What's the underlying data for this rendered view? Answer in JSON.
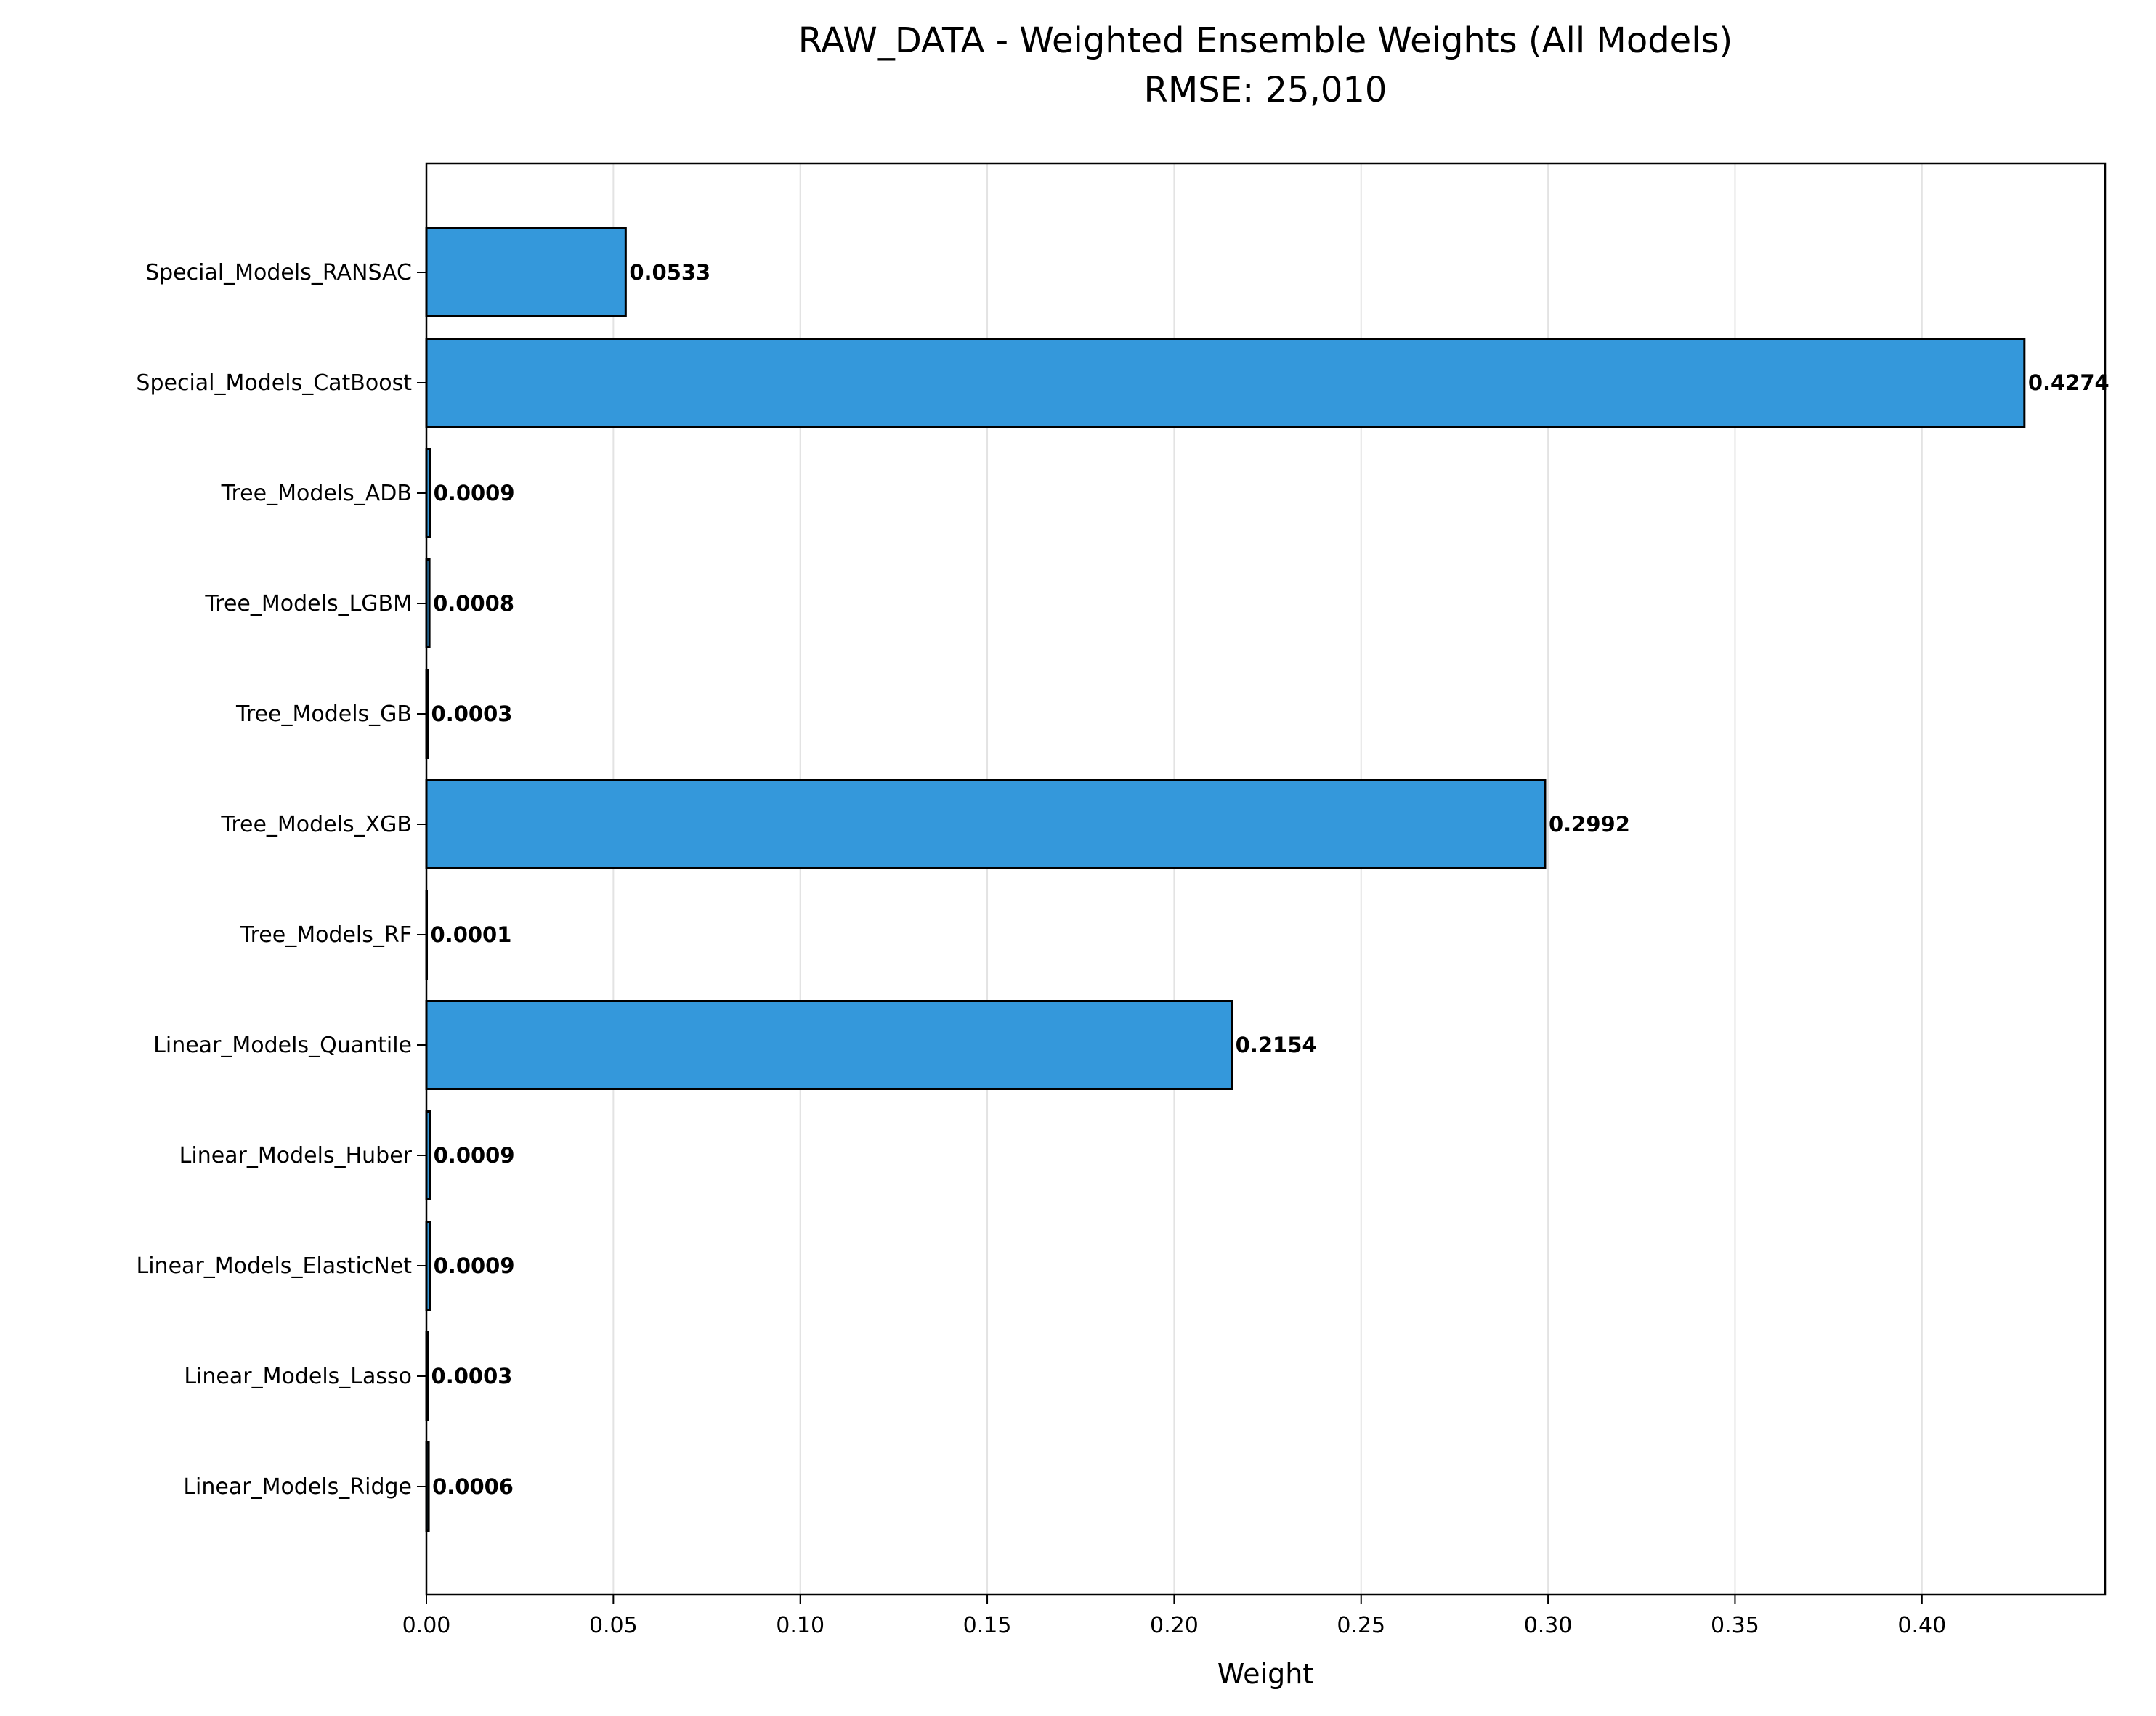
{
  "chart_data": {
    "type": "bar",
    "orientation": "horizontal",
    "title": "RAW_DATA - Weighted Ensemble Weights (All Models)",
    "subtitle": "RMSE: 25,010",
    "xlabel": "Weight",
    "ylabel": "",
    "xlim": [
      0,
      0.449
    ],
    "xticks": [
      "0.00",
      "0.05",
      "0.10",
      "0.15",
      "0.20",
      "0.25",
      "0.30",
      "0.35",
      "0.40"
    ],
    "grid": "vertical",
    "bar_color": "#3498db",
    "edge_color": "#000000",
    "categories": [
      "Special_Models_RANSAC",
      "Special_Models_CatBoost",
      "Tree_Models_ADB",
      "Tree_Models_LGBM",
      "Tree_Models_GB",
      "Tree_Models_XGB",
      "Tree_Models_RF",
      "Linear_Models_Quantile",
      "Linear_Models_Huber",
      "Linear_Models_ElasticNet",
      "Linear_Models_Lasso",
      "Linear_Models_Ridge"
    ],
    "values": [
      0.0533,
      0.4274,
      0.0009,
      0.0008,
      0.0003,
      0.2992,
      0.0001,
      0.2154,
      0.0009,
      0.0009,
      0.0003,
      0.0006
    ],
    "data_labels": [
      "0.0533",
      "0.4274",
      "0.0009",
      "0.0008",
      "0.0003",
      "0.2992",
      "0.0001",
      "0.2154",
      "0.0009",
      "0.0009",
      "0.0003",
      "0.0006"
    ]
  }
}
